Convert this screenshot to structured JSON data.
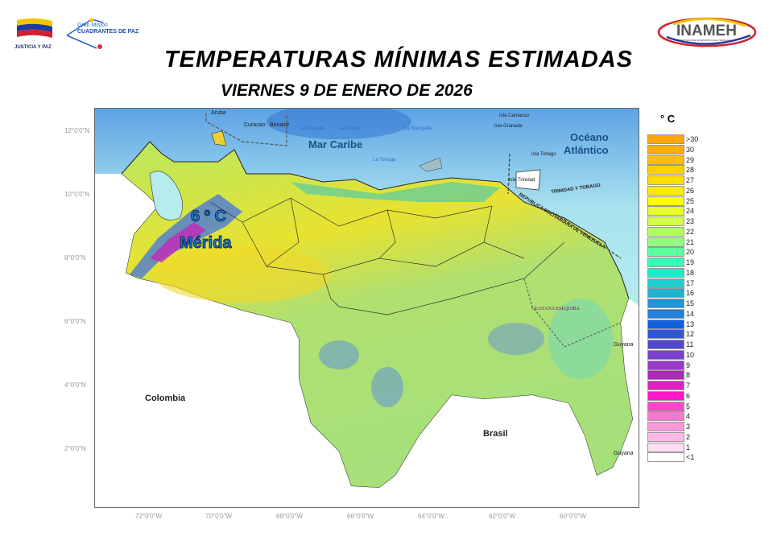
{
  "header": {
    "logo_left_1": "JUSTICIA Y PAZ",
    "logo_left_2_line1": "Gran Misión",
    "logo_left_2_line2": "CUADRANTES DE PAZ",
    "logo_right": "INAMEH",
    "logo_right_sub": "INSTITUTO NACIONAL DE METEOROLOGÍA E HIDROLOGÍA",
    "title": "TEMPERATURAS MÍNIMAS ESTIMADAS",
    "subtitle": "VIERNES 9 DE ENERO DE 2026"
  },
  "map": {
    "lat_labels": [
      "12°0'0\"N",
      "10°0'0\"N",
      "8°0'0\"N",
      "6°0'0\"N",
      "4°0'0\"N",
      "2°0'0\"N"
    ],
    "lon_labels": [
      "72°0'0\"W",
      "70°0'0\"W",
      "68°0'0\"W",
      "66°0'0\"W",
      "64°0'0\"W",
      "62°0'0\"W",
      "60°0'0\"W"
    ],
    "places": {
      "aruba": "Aruba",
      "curazao": "Curazao",
      "bonaire": "Bonaire",
      "los_roques": "Los Roques",
      "la_orchila": "La Orchila",
      "la_blanquilla": "La Blanquilla",
      "la_tortuga": "La Tortuga",
      "carriacou": "Isla Carriacou",
      "granada": "Isla Granada",
      "tobago": "Isla Tobago",
      "trinidad": "Isla Trinidad",
      "mar_caribe": "Mar Caribe",
      "oceano_1": "Océano",
      "oceano_2": "Atlántico",
      "tt": "TRINIDAD Y TOBAGO",
      "rbv": "REPUBLICA BOLIVARIANA DE VENEZUELA",
      "esequiba": "GUAYANA ESEQUIBA",
      "guyana_1": "Guyana",
      "guyana_2": "Guyana",
      "colombia": "Colombia",
      "brasil": "Brasil"
    },
    "annotation": {
      "temp": "6 º C",
      "city": "Mérida"
    }
  },
  "legend": {
    "title": "° C",
    "items": [
      {
        "label": ">30",
        "color": "#FFA500"
      },
      {
        "label": "30",
        "color": "#FFAD00"
      },
      {
        "label": "29",
        "color": "#FFBF00"
      },
      {
        "label": "28",
        "color": "#FFD000"
      },
      {
        "label": "27",
        "color": "#FFDD00"
      },
      {
        "label": "26",
        "color": "#FFEA00"
      },
      {
        "label": "25",
        "color": "#FFFF00"
      },
      {
        "label": "24",
        "color": "#E8FF2A"
      },
      {
        "label": "23",
        "color": "#D2FF4A"
      },
      {
        "label": "22",
        "color": "#B0FF60"
      },
      {
        "label": "21",
        "color": "#90FF80"
      },
      {
        "label": "20",
        "color": "#5CFFA0"
      },
      {
        "label": "19",
        "color": "#30FFB5"
      },
      {
        "label": "18",
        "color": "#18EECC"
      },
      {
        "label": "17",
        "color": "#20D0D0"
      },
      {
        "label": "16",
        "color": "#20B0D0"
      },
      {
        "label": "15",
        "color": "#2095DA"
      },
      {
        "label": "14",
        "color": "#2080DA"
      },
      {
        "label": "13",
        "color": "#1060E0"
      },
      {
        "label": "12",
        "color": "#3055DD"
      },
      {
        "label": "11",
        "color": "#5048D0"
      },
      {
        "label": "10",
        "color": "#7A40D0"
      },
      {
        "label": "9",
        "color": "#9A38C8"
      },
      {
        "label": "8",
        "color": "#B028B8"
      },
      {
        "label": "7",
        "color": "#E020C0"
      },
      {
        "label": "6",
        "color": "#FF18C8"
      },
      {
        "label": "5",
        "color": "#FF48C8"
      },
      {
        "label": "4",
        "color": "#FF78D0"
      },
      {
        "label": "3",
        "color": "#FF98D8"
      },
      {
        "label": "2",
        "color": "#FFB8E6"
      },
      {
        "label": "1",
        "color": "#FFDDF2"
      },
      {
        "label": "<1",
        "color": "#FFFFFF"
      }
    ]
  }
}
